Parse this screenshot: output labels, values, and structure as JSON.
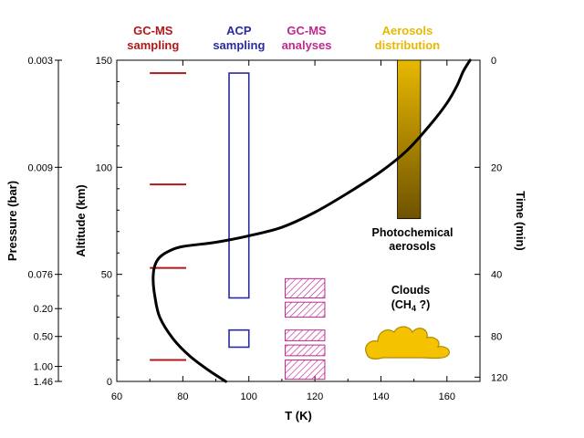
{
  "chart_data": {
    "type": "line",
    "colors": {
      "gcms_sampling": "#b01818",
      "acp_sampling": "#2a2aa0",
      "gcms_analyses": "#c0288f",
      "aerosols": "#e8b800",
      "aerosols_dark": "#6e5200",
      "clouds": "#f5c200",
      "curve": "#000000"
    },
    "headers": [
      {
        "key": "gcms_sampling",
        "lines": [
          "GC-MS",
          "sampling"
        ],
        "color": "#b01818",
        "x": 71
      },
      {
        "key": "acp_sampling",
        "lines": [
          "ACP",
          "sampling"
        ],
        "color": "#2a2aa0",
        "x": 97
      },
      {
        "key": "gcms_analyses",
        "lines": [
          "GC-MS",
          "analyses"
        ],
        "color": "#c0288f",
        "x": 117.5
      },
      {
        "key": "aerosols_distribution",
        "lines": [
          "Aerosols",
          "distribution"
        ],
        "color": "#e8b800",
        "x": 148
      }
    ],
    "xlabel": "T (K)",
    "ylabel": "Altitude (km)",
    "left_label": "Pressure (bar)",
    "right_label": "Time (min)",
    "xlim": [
      60,
      170
    ],
    "ylim": [
      0,
      150
    ],
    "x_ticks": [
      60,
      80,
      100,
      120,
      140,
      160
    ],
    "y_ticks": [
      0,
      50,
      100,
      150
    ],
    "pressure_ticks": [
      {
        "label": "0.003",
        "alt": 150
      },
      {
        "label": "0.009",
        "alt": 100
      },
      {
        "label": "0.076",
        "alt": 50
      },
      {
        "label": "0.20",
        "alt": 34
      },
      {
        "label": "0.50",
        "alt": 21
      },
      {
        "label": "1.00",
        "alt": 7
      },
      {
        "label": "1.46",
        "alt": 0
      }
    ],
    "time_ticks": [
      {
        "label": "0",
        "alt": 150
      },
      {
        "label": "20",
        "alt": 100
      },
      {
        "label": "40",
        "alt": 50
      },
      {
        "label": "80",
        "alt": 21
      },
      {
        "label": "120",
        "alt": 2
      }
    ],
    "temperature_profile": {
      "x": [
        93,
        88,
        82,
        77,
        73,
        71.5,
        71,
        71.5,
        73,
        76,
        80,
        90,
        100,
        110,
        120,
        130,
        140,
        148,
        155,
        160,
        163,
        165,
        167
      ],
      "y": [
        0,
        5,
        12,
        20,
        30,
        40,
        48,
        54,
        58,
        61,
        63,
        65,
        68,
        72,
        79,
        88,
        98,
        108,
        120,
        130,
        138,
        145,
        150
      ]
    },
    "gcms_sampling_altitudes": [
      144,
      92,
      53,
      10
    ],
    "gcms_sampling_t_range": [
      70,
      81
    ],
    "acp_sampling_boxes": [
      {
        "alt_range": [
          39,
          144
        ],
        "t_range": [
          94,
          100
        ]
      },
      {
        "alt_range": [
          16,
          24
        ],
        "t_range": [
          94,
          100
        ]
      }
    ],
    "gcms_analyses_boxes": [
      {
        "alt_range": [
          39,
          48
        ],
        "t_range": [
          111,
          123
        ]
      },
      {
        "alt_range": [
          30,
          37
        ],
        "t_range": [
          111,
          123
        ]
      },
      {
        "alt_range": [
          19,
          24
        ],
        "t_range": [
          111,
          123
        ]
      },
      {
        "alt_range": [
          12,
          17
        ],
        "t_range": [
          111,
          123
        ]
      },
      {
        "alt_range": [
          1,
          10
        ],
        "t_range": [
          111,
          123
        ]
      }
    ],
    "aerosols_bar": {
      "alt_range": [
        76,
        150
      ],
      "t_range": [
        145,
        152
      ]
    },
    "annotations": {
      "photochemical": [
        "Photochemical",
        "aerosols"
      ],
      "clouds_line1": "Clouds",
      "clouds_line2_prefix": "(CH",
      "clouds_line2_sub": "4",
      "clouds_line2_suffix": " ?)"
    }
  }
}
